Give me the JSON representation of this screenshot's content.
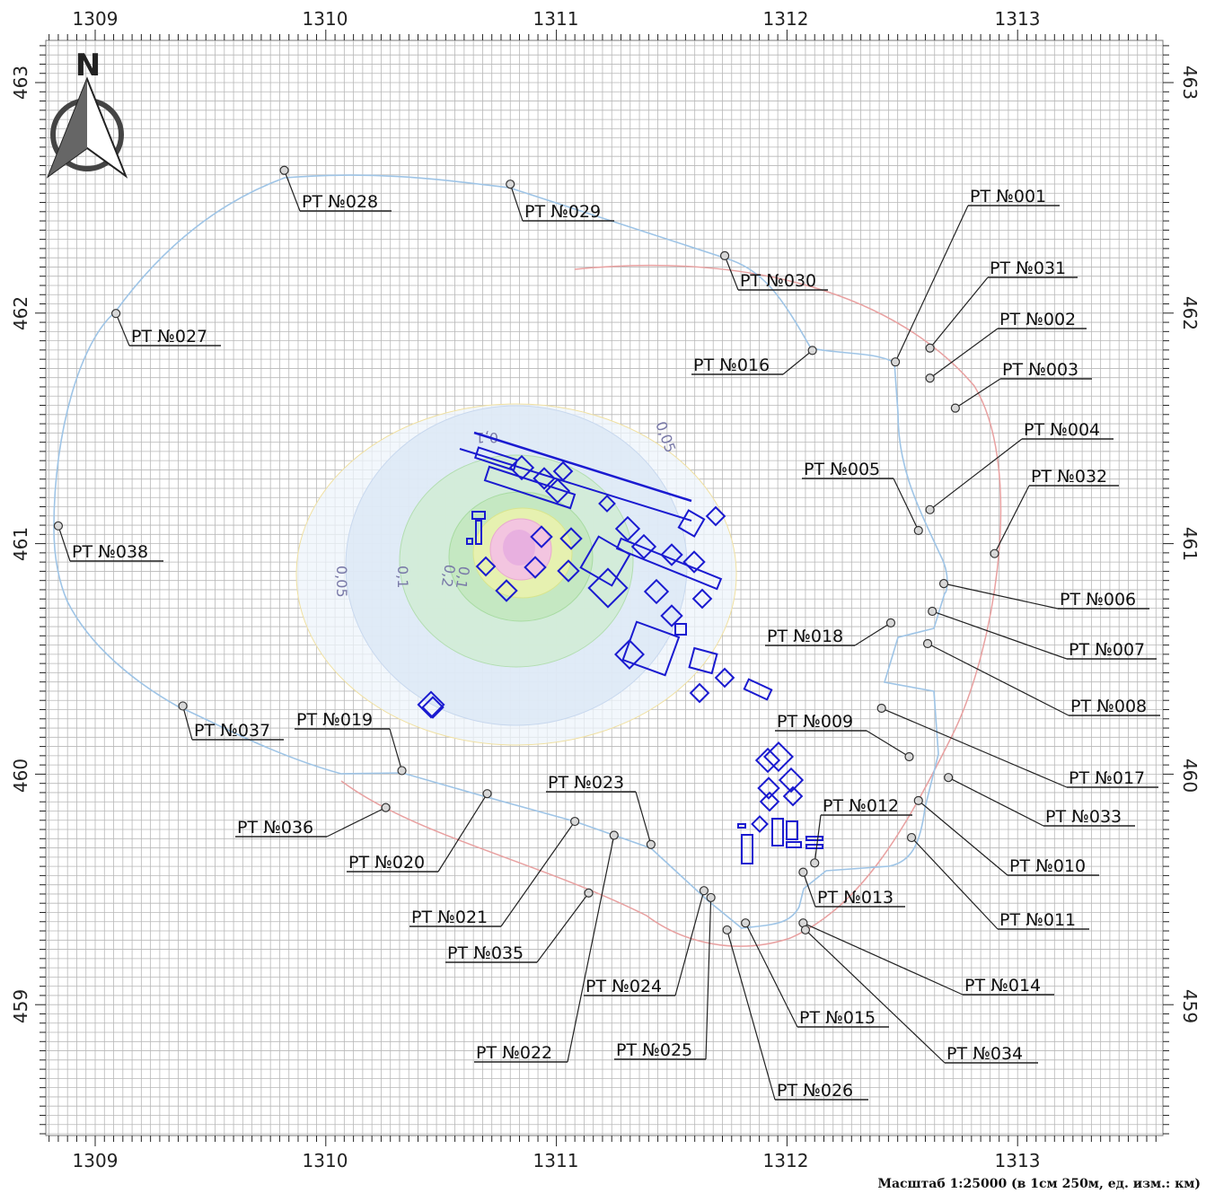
{
  "axes": {
    "x_ticks": [
      "1309",
      "1310",
      "1311",
      "1312",
      "1313"
    ],
    "y_ticks": [
      "463",
      "462",
      "461",
      "460",
      "459"
    ]
  },
  "north_label": "N",
  "scale_note": "Масштаб 1:25000 (в 1см 250м, ед. изм.: км)",
  "contour_labels": [
    "0,1",
    "0,05",
    "0,1",
    "0,2",
    "0,05",
    "0,1"
  ],
  "colors": {
    "grid": "#b8b8b8",
    "boundary_blue": "#9ec4e6",
    "boundary_red": "#e8a0a0",
    "buildings": "#1a1ad0",
    "contour_outer": "#dde9f6",
    "contour_green": "#c5e8c2",
    "contour_yellow": "#eaf0a8",
    "contour_pink": "#f3c5e0"
  },
  "points": [
    {
      "label": "РТ №001",
      "x": 1312.47,
      "y": 461.79
    },
    {
      "label": "РТ №031",
      "x": 1312.62,
      "y": 461.85
    },
    {
      "label": "РТ №002",
      "x": 1312.62,
      "y": 461.72
    },
    {
      "label": "РТ №003",
      "x": 1312.73,
      "y": 461.59
    },
    {
      "label": "РТ №004",
      "x": 1312.62,
      "y": 461.15
    },
    {
      "label": "РТ №005",
      "x": 1312.57,
      "y": 461.06
    },
    {
      "label": "РТ №032",
      "x": 1312.9,
      "y": 460.96
    },
    {
      "label": "РТ №006",
      "x": 1312.68,
      "y": 460.83
    },
    {
      "label": "РТ №007",
      "x": 1312.63,
      "y": 460.71
    },
    {
      "label": "РТ №018",
      "x": 1312.45,
      "y": 460.66
    },
    {
      "label": "РТ №008",
      "x": 1312.61,
      "y": 460.57
    },
    {
      "label": "РТ №017",
      "x": 1312.41,
      "y": 460.29
    },
    {
      "label": "РТ №009",
      "x": 1312.53,
      "y": 460.08
    },
    {
      "label": "РТ №033",
      "x": 1312.7,
      "y": 459.99
    },
    {
      "label": "РТ №010",
      "x": 1312.57,
      "y": 459.89
    },
    {
      "label": "РТ №012",
      "x": 1312.12,
      "y": 459.62
    },
    {
      "label": "РТ №011",
      "x": 1312.54,
      "y": 459.73
    },
    {
      "label": "РТ №013",
      "x": 1312.07,
      "y": 459.58
    },
    {
      "label": "РТ №014",
      "x": 1312.07,
      "y": 459.36
    },
    {
      "label": "РТ №034",
      "x": 1312.08,
      "y": 459.33
    },
    {
      "label": "РТ №015",
      "x": 1311.82,
      "y": 459.36
    },
    {
      "label": "РТ №026",
      "x": 1311.74,
      "y": 459.33
    },
    {
      "label": "РТ №025",
      "x": 1311.67,
      "y": 459.47
    },
    {
      "label": "РТ №024",
      "x": 1311.64,
      "y": 459.5
    },
    {
      "label": "РТ №022",
      "x": 1311.25,
      "y": 459.74
    },
    {
      "label": "РТ №023",
      "x": 1311.41,
      "y": 459.7
    },
    {
      "label": "РТ №035",
      "x": 1311.14,
      "y": 459.49
    },
    {
      "label": "РТ №021",
      "x": 1311.08,
      "y": 459.8
    },
    {
      "label": "РТ №020",
      "x": 1310.7,
      "y": 459.92
    },
    {
      "label": "РТ №036",
      "x": 1310.26,
      "y": 459.86
    },
    {
      "label": "РТ №019",
      "x": 1310.33,
      "y": 460.02
    },
    {
      "label": "РТ №037",
      "x": 1309.38,
      "y": 460.3
    },
    {
      "label": "РТ №038",
      "x": 1308.84,
      "y": 461.08
    },
    {
      "label": "РТ №027",
      "x": 1309.09,
      "y": 462.0
    },
    {
      "label": "РТ №028",
      "x": 1309.82,
      "y": 462.62
    },
    {
      "label": "РТ №029",
      "x": 1310.8,
      "y": 462.56
    },
    {
      "label": "РТ №030",
      "x": 1311.73,
      "y": 462.25
    },
    {
      "label": "РТ №016",
      "x": 1312.11,
      "y": 461.84
    }
  ]
}
